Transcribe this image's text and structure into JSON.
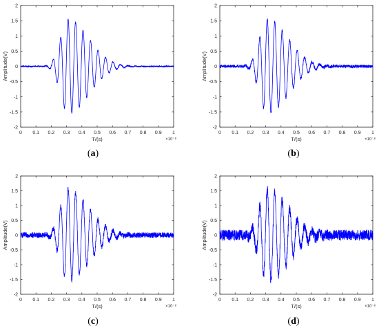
{
  "figure": {
    "panel_letters": [
      "a",
      "b",
      "c",
      "d"
    ]
  },
  "chart_data": [
    {
      "panel": "a",
      "type": "line",
      "xlabel": "T/(s)",
      "ylabel": "Amplitude(V)",
      "x_exponent_label": "×10⁻⁸",
      "xlim": [
        0,
        1
      ],
      "ylim": [
        -2,
        2
      ],
      "xticks": [
        "0",
        "0.1",
        "0.2",
        "0.3",
        "0.4",
        "0.5",
        "0.6",
        "0.7",
        "0.8",
        "0.9",
        "1"
      ],
      "yticks": [
        "-2",
        "-1.5",
        "-1",
        "-0.5",
        "0",
        "0.5",
        "1",
        "1.5",
        "2"
      ],
      "grid": false,
      "series_color": "#0000ff",
      "signal": {
        "description_values": "windowed sinusoidal pulse",
        "center_x": 0.31,
        "period_x": 0.049,
        "peak_amplitude": 1.55,
        "noise_level": 0.02
      }
    },
    {
      "panel": "b",
      "type": "line",
      "xlabel": "T/(s)",
      "ylabel": "Amplitude(V)",
      "x_exponent_label": "×10⁻⁸",
      "xlim": [
        0,
        1
      ],
      "ylim": [
        -2,
        2
      ],
      "xticks": [
        "0",
        "0.1",
        "0.2",
        "0.3",
        "0.4",
        "0.5",
        "0.6",
        "0.7",
        "0.8",
        "0.9",
        "1"
      ],
      "yticks": [
        "-2",
        "-1.5",
        "-1",
        "-0.5",
        "0",
        "0.5",
        "1",
        "1.5",
        "2"
      ],
      "grid": false,
      "series_color": "#0000ff",
      "signal": {
        "description_values": "windowed sinusoidal pulse",
        "center_x": 0.31,
        "period_x": 0.049,
        "peak_amplitude": 1.55,
        "noise_level": 0.05
      }
    },
    {
      "panel": "c",
      "type": "line",
      "xlabel": "T/(s)",
      "ylabel": "Amplitude(V)",
      "x_exponent_label": "×10⁻⁸",
      "xlim": [
        0,
        1
      ],
      "ylim": [
        -2,
        2
      ],
      "xticks": [
        "0",
        "0.1",
        "0.2",
        "0.3",
        "0.4",
        "0.5",
        "0.6",
        "0.7",
        "0.8",
        "0.9",
        "1"
      ],
      "yticks": [
        "-2",
        "-1.5",
        "-1",
        "-0.5",
        "0",
        "0.5",
        "1",
        "1.5",
        "2"
      ],
      "grid": false,
      "series_color": "#0000ff",
      "signal": {
        "description_values": "windowed sinusoidal pulse",
        "center_x": 0.31,
        "period_x": 0.049,
        "peak_amplitude": 1.55,
        "noise_level": 0.09
      }
    },
    {
      "panel": "d",
      "type": "line",
      "xlabel": "T/(s)",
      "ylabel": "Amplitude(V)",
      "x_exponent_label": "×10⁻⁸",
      "xlim": [
        0,
        1
      ],
      "ylim": [
        -2,
        2
      ],
      "xticks": [
        "0",
        "0.1",
        "0.2",
        "0.3",
        "0.4",
        "0.5",
        "0.6",
        "0.7",
        "0.8",
        "0.9",
        "1"
      ],
      "yticks": [
        "-2",
        "-1.5",
        "-1",
        "-0.5",
        "0",
        "0.5",
        "1",
        "1.5",
        "2"
      ],
      "grid": false,
      "series_color": "#0000ff",
      "signal": {
        "description_values": "windowed sinusoidal pulse",
        "center_x": 0.31,
        "period_x": 0.049,
        "peak_amplitude": 1.55,
        "noise_level": 0.18
      }
    }
  ]
}
